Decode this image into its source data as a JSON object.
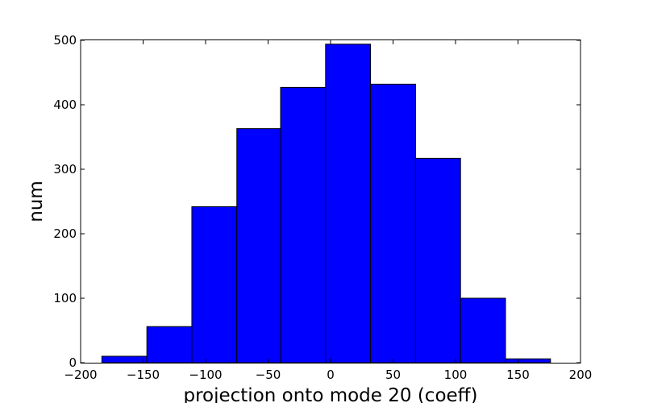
{
  "chart_data": {
    "type": "bar",
    "bar_color": "#0000ff",
    "xlabel": "projection onto mode 20 (coeff)",
    "ylabel": "num",
    "xlim": [
      -200,
      200
    ],
    "ylim": [
      0,
      500
    ],
    "xticks": [
      -200,
      -150,
      -100,
      -50,
      0,
      50,
      100,
      150,
      200
    ],
    "yticks": [
      0,
      100,
      200,
      300,
      400,
      500
    ],
    "xtick_labels": [
      "−200",
      "−150",
      "−100",
      "−50",
      "0",
      "50",
      "100",
      "150",
      "200"
    ],
    "ytick_labels": [
      "0",
      "100",
      "200",
      "300",
      "400",
      "500"
    ],
    "bin_edges": [
      -183,
      -147,
      -111,
      -75,
      -40,
      -4,
      32,
      68,
      104,
      140,
      176
    ],
    "values": [
      10,
      56,
      242,
      363,
      427,
      494,
      432,
      317,
      100,
      6
    ],
    "grid": false,
    "legend": false
  }
}
